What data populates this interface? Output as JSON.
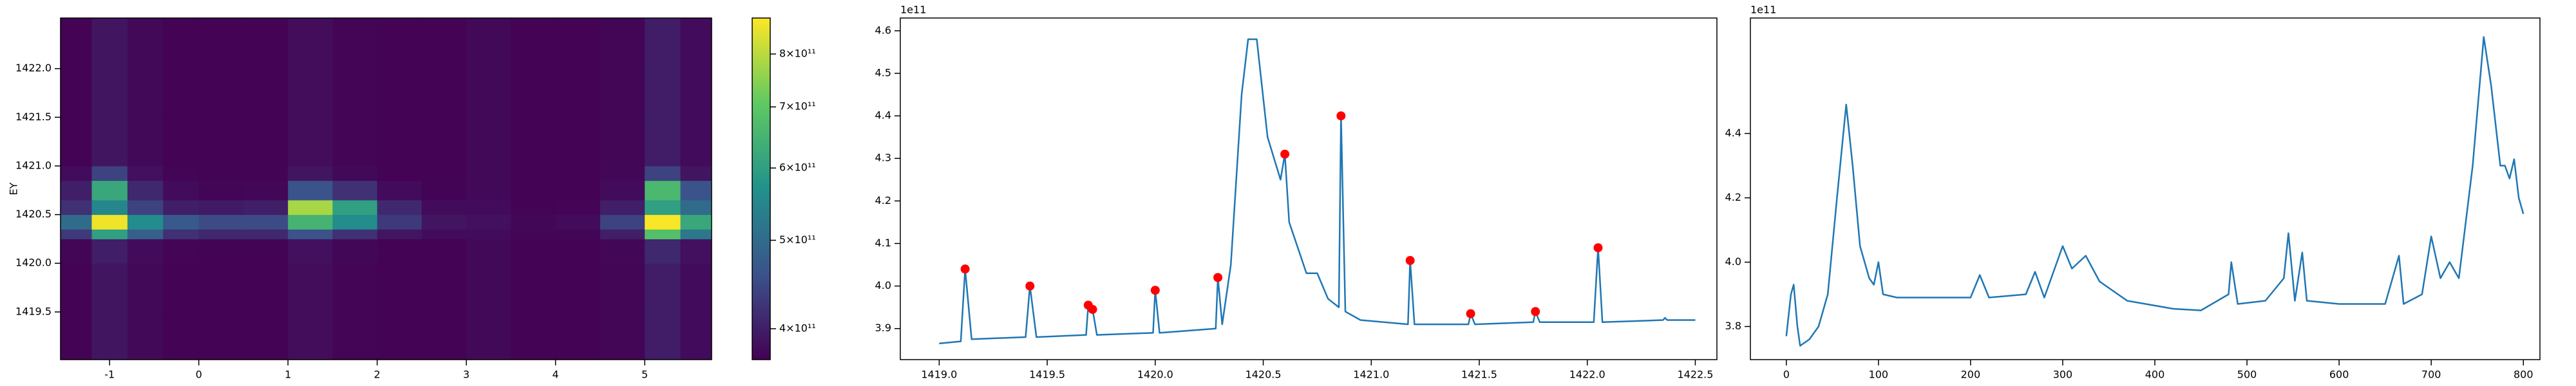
{
  "chart_data": [
    {
      "type": "heatmap",
      "ylabel": "EY",
      "x_edges": [
        -1.55,
        -1.2,
        -0.8,
        -0.4,
        0,
        0.5,
        1,
        1.5,
        2,
        2.5,
        3,
        3.5,
        4,
        4.5,
        5,
        5.4,
        5.75
      ],
      "y_edges": [
        1419.01,
        1419.5,
        1420.0,
        1420.25,
        1420.35,
        1420.5,
        1420.65,
        1420.85,
        1421.0,
        1421.5,
        1422.0,
        1422.52
      ],
      "z": [
        [
          372000000000.0,
          390000000000.0,
          378000000000.0,
          372000000000.0,
          372000000000.0,
          372000000000.0,
          382000000000.0,
          374000000000.0,
          372000000000.0,
          372000000000.0,
          378000000000.0,
          372000000000.0,
          372000000000.0,
          375000000000.0,
          398000000000.0,
          380000000000.0
        ],
        [
          372000000000.0,
          390000000000.0,
          378000000000.0,
          372000000000.0,
          372000000000.0,
          372000000000.0,
          382000000000.0,
          374000000000.0,
          372000000000.0,
          372000000000.0,
          378000000000.0,
          372000000000.0,
          372000000000.0,
          375000000000.0,
          398000000000.0,
          380000000000.0
        ],
        [
          375000000000.0,
          400000000000.0,
          380000000000.0,
          374000000000.0,
          373000000000.0,
          373000000000.0,
          385000000000.0,
          376000000000.0,
          372000000000.0,
          372000000000.0,
          378000000000.0,
          372000000000.0,
          372000000000.0,
          376000000000.0,
          410000000000.0,
          385000000000.0
        ],
        [
          430000000000.0,
          600000000000.0,
          480000000000.0,
          420000000000.0,
          410000000000.0,
          410000000000.0,
          460000000000.0,
          420000000000.0,
          390000000000.0,
          380000000000.0,
          380000000000.0,
          374000000000.0,
          375000000000.0,
          400000000000.0,
          680000000000.0,
          520000000000.0
        ],
        [
          500000000000.0,
          860000000000.0,
          560000000000.0,
          470000000000.0,
          450000000000.0,
          450000000000.0,
          650000000000.0,
          560000000000.0,
          430000000000.0,
          390000000000.0,
          385000000000.0,
          376000000000.0,
          380000000000.0,
          440000000000.0,
          870000000000.0,
          620000000000.0
        ],
        [
          420000000000.0,
          550000000000.0,
          440000000000.0,
          400000000000.0,
          395000000000.0,
          400000000000.0,
          780000000000.0,
          600000000000.0,
          410000000000.0,
          380000000000.0,
          380000000000.0,
          373000000000.0,
          374000000000.0,
          400000000000.0,
          600000000000.0,
          500000000000.0
        ],
        [
          400000000000.0,
          620000000000.0,
          410000000000.0,
          380000000000.0,
          375000000000.0,
          376000000000.0,
          460000000000.0,
          420000000000.0,
          380000000000.0,
          373000000000.0,
          378000000000.0,
          372000000000.0,
          372000000000.0,
          380000000000.0,
          660000000000.0,
          460000000000.0
        ],
        [
          380000000000.0,
          440000000000.0,
          385000000000.0,
          374000000000.0,
          373000000000.0,
          373000000000.0,
          390000000000.0,
          378000000000.0,
          372000000000.0,
          372000000000.0,
          378000000000.0,
          372000000000.0,
          372000000000.0,
          376000000000.0,
          440000000000.0,
          390000000000.0
        ],
        [
          372000000000.0,
          390000000000.0,
          378000000000.0,
          372000000000.0,
          372000000000.0,
          372000000000.0,
          382000000000.0,
          374000000000.0,
          372000000000.0,
          372000000000.0,
          378000000000.0,
          372000000000.0,
          372000000000.0,
          375000000000.0,
          398000000000.0,
          380000000000.0
        ],
        [
          372000000000.0,
          390000000000.0,
          378000000000.0,
          372000000000.0,
          372000000000.0,
          372000000000.0,
          382000000000.0,
          374000000000.0,
          372000000000.0,
          372000000000.0,
          378000000000.0,
          372000000000.0,
          372000000000.0,
          375000000000.0,
          398000000000.0,
          380000000000.0
        ],
        [
          372000000000.0,
          390000000000.0,
          378000000000.0,
          372000000000.0,
          372000000000.0,
          372000000000.0,
          382000000000.0,
          374000000000.0,
          372000000000.0,
          372000000000.0,
          378000000000.0,
          372000000000.0,
          372000000000.0,
          375000000000.0,
          398000000000.0,
          380000000000.0
        ]
      ],
      "xlim": [
        -1.55,
        5.75
      ],
      "ylim": [
        1419.01,
        1422.52
      ],
      "xticks": [
        -1,
        0,
        1,
        2,
        3,
        4,
        5
      ],
      "yticks": [
        1419.5,
        {
          "value": 1420,
          "label": "1420.0"
        },
        1420.5,
        {
          "value": 1421,
          "label": "1421.0"
        },
        1421.5,
        {
          "value": 1422,
          "label": "1422.0"
        }
      ],
      "colormap": "viridis",
      "colorbar": {
        "scale": "log",
        "lim": [
          370000000000.0,
          876000000000.0
        ],
        "ticks": [
          {
            "value": 400000000000.0,
            "label": "4×10¹¹"
          },
          {
            "value": 500000000000.0,
            "label": "5×10¹¹"
          },
          {
            "value": 600000000000.0,
            "label": "6×10¹¹"
          },
          {
            "value": 700000000000.0,
            "label": "7×10¹¹"
          },
          {
            "value": 800000000000.0,
            "label": "8×10¹¹"
          }
        ]
      }
    },
    {
      "type": "line",
      "y_offset_label": "1e11",
      "xlim": [
        1418.82,
        1422.6
      ],
      "ylim": [
        3.827,
        4.63
      ],
      "xticks": [
        {
          "value": 1419,
          "label": "1419.0"
        },
        1419.5,
        {
          "value": 1420,
          "label": "1420.0"
        },
        1420.5,
        {
          "value": 1421,
          "label": "1421.0"
        },
        1421.5,
        {
          "value": 1422,
          "label": "1422.0"
        },
        1422.5
      ],
      "yticks": [
        3.9,
        {
          "value": 4,
          "label": "4.0"
        },
        4.1,
        4.2,
        4.3,
        4.4,
        4.5,
        4.6
      ],
      "series": [
        {
          "color": "#1f77b4",
          "style": "line",
          "x": [
            1419.0,
            1419.1,
            1419.12,
            1419.15,
            1419.4,
            1419.42,
            1419.45,
            1419.68,
            1419.69,
            1419.71,
            1419.73,
            1419.99,
            1420.0,
            1420.02,
            1420.28,
            1420.29,
            1420.31,
            1420.35,
            1420.4,
            1420.43,
            1420.47,
            1420.52,
            1420.58,
            1420.6,
            1420.62,
            1420.7,
            1420.75,
            1420.8,
            1420.85,
            1420.86,
            1420.88,
            1420.95,
            1421.17,
            1421.18,
            1421.2,
            1421.45,
            1421.46,
            1421.48,
            1421.75,
            1421.76,
            1421.78,
            1422.03,
            1422.05,
            1422.07,
            1422.35,
            1422.36,
            1422.37,
            1422.5
          ],
          "values": [
            3.865,
            3.87,
            4.04,
            3.875,
            3.88,
            4.0,
            3.88,
            3.885,
            3.955,
            3.945,
            3.885,
            3.89,
            3.99,
            3.89,
            3.9,
            4.02,
            3.91,
            4.05,
            4.45,
            4.58,
            4.58,
            4.35,
            4.25,
            4.31,
            4.15,
            4.03,
            4.03,
            3.97,
            3.95,
            4.4,
            3.94,
            3.92,
            3.91,
            4.06,
            3.91,
            3.91,
            3.935,
            3.91,
            3.915,
            3.94,
            3.915,
            3.915,
            4.09,
            3.915,
            3.92,
            3.925,
            3.92,
            3.92
          ]
        },
        {
          "color": "#ff0000",
          "style": "markers",
          "x": [
            1419.12,
            1419.42,
            1419.69,
            1419.71,
            1420.0,
            1420.29,
            1420.6,
            1420.86,
            1421.18,
            1421.46,
            1421.76,
            1422.05
          ],
          "values": [
            4.04,
            4.0,
            3.955,
            3.945,
            3.99,
            4.02,
            4.31,
            4.4,
            4.06,
            3.935,
            3.94,
            4.09
          ]
        }
      ]
    },
    {
      "type": "line",
      "y_offset_label": "1e11",
      "xlim": [
        -39,
        818
      ],
      "ylim": [
        3.697,
        4.759
      ],
      "xticks": [
        0,
        100,
        200,
        300,
        400,
        500,
        600,
        700,
        800
      ],
      "yticks": [
        3.8,
        {
          "value": 4,
          "label": "4.0"
        },
        4.2,
        4.4
      ],
      "series": [
        {
          "color": "#1f77b4",
          "style": "line",
          "x": [
            0,
            5,
            8,
            12,
            15,
            25,
            35,
            45,
            55,
            65,
            72,
            80,
            90,
            95,
            100,
            105,
            120,
            150,
            200,
            210,
            220,
            260,
            270,
            280,
            300,
            310,
            325,
            340,
            370,
            420,
            450,
            480,
            483,
            490,
            520,
            540,
            545,
            552,
            560,
            565,
            600,
            650,
            665,
            670,
            690,
            700,
            710,
            720,
            730,
            745,
            757,
            765,
            775,
            780,
            785,
            790,
            795,
            800
          ],
          "values": [
            3.77,
            3.9,
            3.93,
            3.8,
            3.74,
            3.76,
            3.8,
            3.9,
            4.2,
            4.49,
            4.3,
            4.05,
            3.95,
            3.93,
            4.0,
            3.9,
            3.89,
            3.89,
            3.89,
            3.96,
            3.89,
            3.9,
            3.97,
            3.89,
            4.05,
            3.98,
            4.02,
            3.94,
            3.88,
            3.855,
            3.85,
            3.9,
            4.0,
            3.87,
            3.88,
            3.95,
            4.09,
            3.88,
            4.03,
            3.88,
            3.87,
            3.87,
            4.02,
            3.87,
            3.9,
            4.08,
            3.95,
            4.0,
            3.95,
            4.3,
            4.7,
            4.55,
            4.3,
            4.3,
            4.26,
            4.32,
            4.2,
            4.15
          ]
        }
      ]
    }
  ]
}
